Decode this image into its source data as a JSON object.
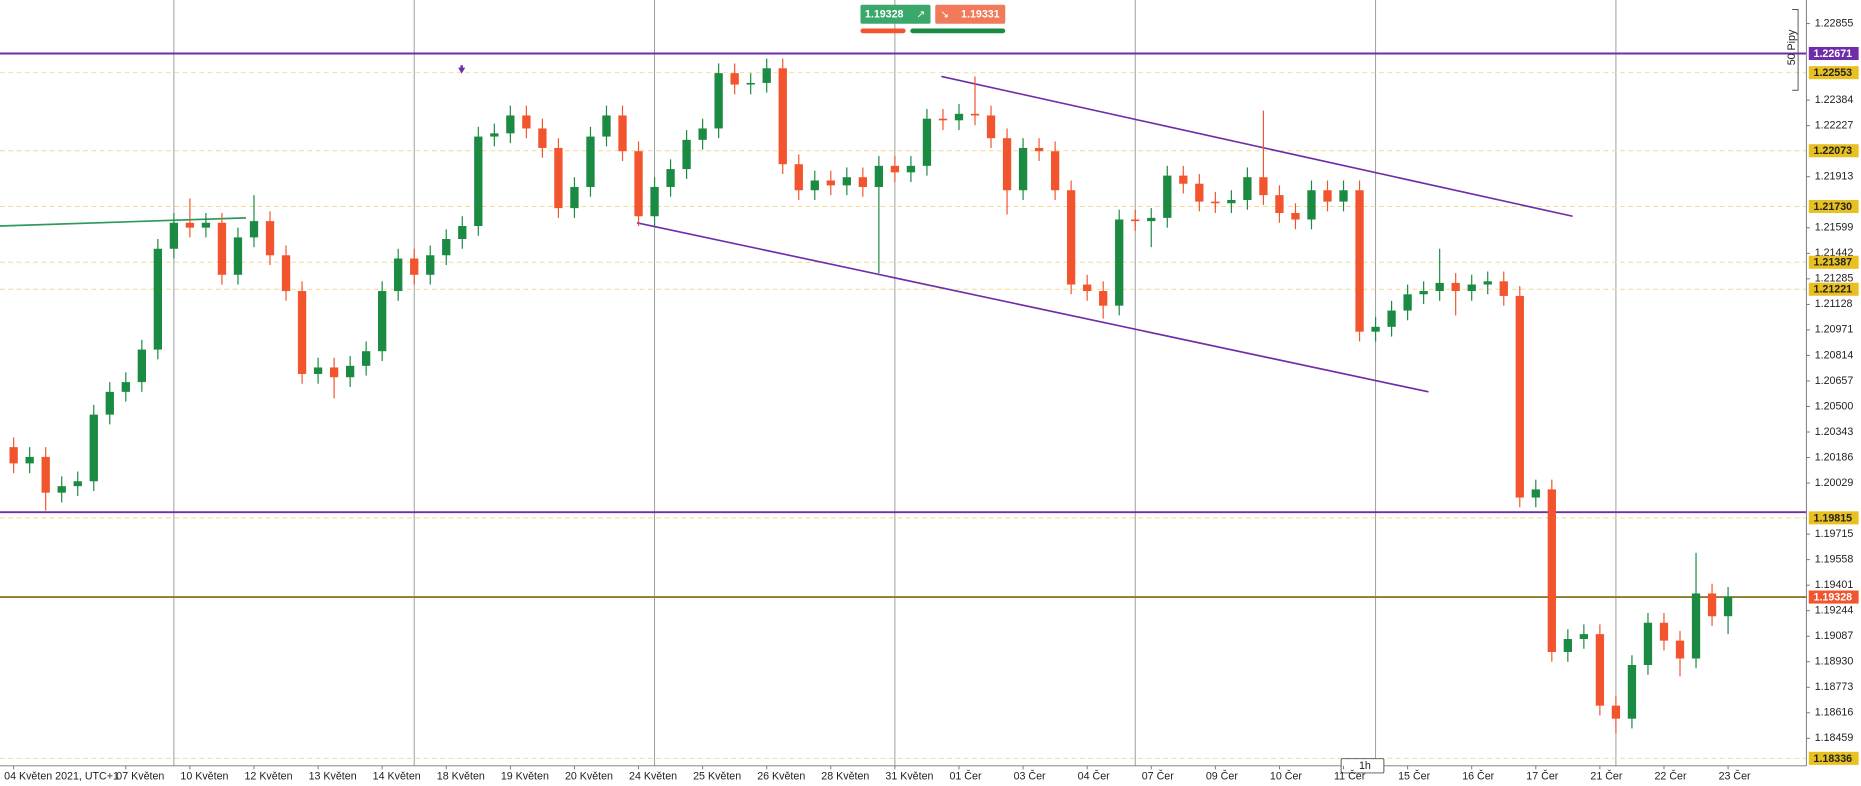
{
  "chart_data": {
    "type": "candlestick",
    "categories": [
      "04 Květen 2021, UTC+1",
      null,
      null,
      null,
      null,
      null,
      null,
      "07 Květen",
      null,
      null,
      null,
      "10 Květen",
      null,
      null,
      null,
      "12 Květen",
      null,
      null,
      null,
      "13 Květen",
      null,
      null,
      null,
      "14 Květen",
      null,
      null,
      null,
      "18 Květen",
      null,
      null,
      null,
      "19 Květen",
      null,
      null,
      null,
      "20 Květen",
      null,
      null,
      null,
      "24 Květen",
      null,
      null,
      null,
      "25 Květen",
      null,
      null,
      null,
      "26 Květen",
      null,
      null,
      null,
      "28 Květen",
      null,
      null,
      null,
      "31 Květen",
      null,
      null,
      null,
      "01 Čer",
      null,
      null,
      null,
      "03 Čer",
      null,
      null,
      null,
      "04 Čer",
      null,
      null,
      null,
      "07 Čer",
      null,
      null,
      null,
      "09 Čer",
      null,
      null,
      null,
      "10 Čer",
      null,
      null,
      null,
      "11 Čer",
      null,
      null,
      null,
      "15 Čer",
      null,
      null,
      null,
      "16 Čer",
      null,
      null,
      null,
      "17 Čer",
      null,
      null,
      null,
      "21 Čer",
      null,
      null,
      null,
      "22 Čer",
      null,
      null,
      null,
      "23 Čer"
    ],
    "open": [
      1.2025,
      1.2015,
      1.2019,
      1.1997,
      1.2001,
      1.2004,
      1.2045,
      1.2059,
      1.2065,
      1.2085,
      1.2147,
      1.2163,
      1.216,
      1.2163,
      1.2131,
      1.2154,
      1.2164,
      1.2143,
      1.2121,
      1.207,
      1.2074,
      1.2068,
      1.2075,
      1.2084,
      1.2121,
      1.2141,
      1.2131,
      1.2143,
      1.2153,
      1.2161,
      1.2216,
      1.2218,
      1.2229,
      1.2221,
      1.2209,
      1.2172,
      1.2185,
      1.2216,
      1.2229,
      1.2207,
      1.2167,
      1.2185,
      1.2196,
      1.2214,
      1.2221,
      1.2255,
      1.2248,
      1.2249,
      1.2258,
      1.2199,
      1.2183,
      1.2189,
      1.2186,
      1.2191,
      1.2185,
      1.2198,
      1.2194,
      1.2198,
      1.2227,
      1.2226,
      1.223,
      1.2229,
      1.2215,
      1.2183,
      1.2209,
      1.2207,
      1.2183,
      1.2125,
      1.2121,
      1.2112,
      1.2165,
      1.2164,
      1.2166,
      1.2192,
      1.2187,
      1.2176,
      1.2175,
      1.2177,
      1.2191,
      1.218,
      1.2169,
      1.2165,
      1.2183,
      1.2176,
      1.2183,
      1.2096,
      1.2099,
      1.2109,
      1.2119,
      1.2121,
      1.2126,
      1.2121,
      1.2125,
      1.2127,
      1.2118,
      1.1994,
      1.1999,
      1.1899,
      1.1907,
      1.191,
      1.1866,
      1.1858,
      1.1891,
      1.1917,
      1.1906,
      1.1895,
      1.1935,
      1.1921
    ],
    "high": [
      1.2031,
      1.2025,
      1.2025,
      1.2007,
      1.201,
      1.2051,
      1.2065,
      1.2071,
      1.2091,
      1.2153,
      1.2169,
      1.2178,
      1.2169,
      1.2169,
      1.216,
      1.218,
      1.217,
      1.2149,
      1.2127,
      1.208,
      1.208,
      1.2081,
      1.209,
      1.2127,
      1.2147,
      1.2147,
      1.2149,
      1.2159,
      1.2167,
      1.2222,
      1.2224,
      1.2235,
      1.2235,
      1.2227,
      1.2215,
      1.2191,
      1.2222,
      1.2235,
      1.2235,
      1.2213,
      1.2191,
      1.2202,
      1.222,
      1.2227,
      1.2261,
      1.2261,
      1.2255,
      1.2264,
      1.2264,
      1.2205,
      1.2195,
      1.2195,
      1.2197,
      1.2197,
      1.2204,
      1.2204,
      1.2204,
      1.2233,
      1.2233,
      1.2236,
      1.2253,
      1.2235,
      1.2221,
      1.2215,
      1.2215,
      1.2213,
      1.2189,
      1.2131,
      1.2127,
      1.2171,
      1.2171,
      1.2172,
      1.2198,
      1.2198,
      1.2193,
      1.2182,
      1.2183,
      1.2197,
      1.2232,
      1.2186,
      1.2175,
      1.2189,
      1.2189,
      1.2189,
      1.2189,
      1.2105,
      1.2115,
      1.2125,
      1.2127,
      1.2147,
      1.2132,
      1.2131,
      1.2133,
      1.2133,
      1.2124,
      1.2005,
      1.2005,
      1.1913,
      1.1916,
      1.1916,
      1.1872,
      1.1897,
      1.1923,
      1.1923,
      1.1912,
      1.196,
      1.1941,
      1.1939
    ],
    "low": [
      1.2009,
      1.2009,
      1.1986,
      1.1991,
      1.1995,
      1.1998,
      1.2039,
      1.2053,
      1.2059,
      1.2079,
      1.2141,
      1.2154,
      1.2154,
      1.2125,
      1.2125,
      1.2148,
      1.2137,
      1.2115,
      1.2064,
      1.2064,
      1.2055,
      1.2062,
      1.2069,
      1.2078,
      1.2115,
      1.2125,
      1.2125,
      1.2137,
      1.2147,
      1.2155,
      1.221,
      1.2212,
      1.2215,
      1.2203,
      1.2166,
      1.2166,
      1.2179,
      1.221,
      1.2201,
      1.2161,
      1.2161,
      1.2179,
      1.219,
      1.2208,
      1.2215,
      1.2242,
      1.2242,
      1.2243,
      1.2193,
      1.2177,
      1.2177,
      1.218,
      1.218,
      1.2179,
      1.2132,
      1.2188,
      1.2188,
      1.2192,
      1.222,
      1.222,
      1.2223,
      1.2209,
      1.2168,
      1.2177,
      1.2201,
      1.2177,
      1.2119,
      1.2115,
      1.2104,
      1.2106,
      1.2158,
      1.2148,
      1.216,
      1.2181,
      1.217,
      1.2169,
      1.2169,
      1.2171,
      1.2174,
      1.2163,
      1.2159,
      1.2159,
      1.217,
      1.217,
      1.209,
      1.209,
      1.2093,
      1.2103,
      1.2113,
      1.2115,
      1.2106,
      1.2115,
      1.2119,
      1.2112,
      1.1988,
      1.1988,
      1.1893,
      1.1893,
      1.1901,
      1.186,
      1.1849,
      1.1852,
      1.1885,
      1.19,
      1.1884,
      1.1889,
      1.1915,
      1.191
    ],
    "close": [
      1.2015,
      1.2019,
      1.1997,
      1.2001,
      1.2004,
      1.2045,
      1.2059,
      1.2065,
      1.2085,
      1.2147,
      1.2163,
      1.216,
      1.2163,
      1.2131,
      1.2154,
      1.2164,
      1.2143,
      1.2121,
      1.207,
      1.2074,
      1.2068,
      1.2075,
      1.2084,
      1.2121,
      1.2141,
      1.2131,
      1.2143,
      1.2153,
      1.2161,
      1.2216,
      1.2218,
      1.2229,
      1.2221,
      1.2209,
      1.2172,
      1.2185,
      1.2216,
      1.2229,
      1.2207,
      1.2167,
      1.2185,
      1.2196,
      1.2214,
      1.2221,
      1.2255,
      1.2248,
      1.2249,
      1.2258,
      1.2199,
      1.2183,
      1.2189,
      1.2186,
      1.2191,
      1.2185,
      1.2198,
      1.2194,
      1.2198,
      1.2227,
      1.2226,
      1.223,
      1.2229,
      1.2215,
      1.2183,
      1.2209,
      1.2207,
      1.2183,
      1.2125,
      1.2121,
      1.2112,
      1.2165,
      1.2164,
      1.2166,
      1.2192,
      1.2187,
      1.2176,
      1.2175,
      1.2177,
      1.2191,
      1.218,
      1.2169,
      1.2165,
      1.2183,
      1.2176,
      1.2183,
      1.2096,
      1.2099,
      1.2109,
      1.2119,
      1.2121,
      1.2126,
      1.2121,
      1.2125,
      1.2127,
      1.2118,
      1.1994,
      1.1999,
      1.1899,
      1.1907,
      1.191,
      1.1866,
      1.1858,
      1.1891,
      1.1917,
      1.1906,
      1.1895,
      1.1935,
      1.1921,
      1.1933
    ],
    "up_color": "#1b8a42",
    "down_color": "#f2542d",
    "ylim": [
      1.1829,
      1.23
    ],
    "yticks": [
      1.22855,
      1.22384,
      1.22227,
      1.21913,
      1.21599,
      1.21442,
      1.21285,
      1.21128,
      1.20971,
      1.20814,
      1.20657,
      {
        "value": 1.205,
        "label": "1.20500"
      },
      1.20343,
      1.20186,
      1.20029,
      1.19715,
      1.19558,
      1.19401,
      1.19244,
      1.19087,
      {
        "value": 1.1893,
        "label": "1.18930"
      },
      1.18773,
      1.18616,
      1.18459
    ],
    "levels": [
      {
        "value": 1.22671,
        "color": "#6f2da8",
        "line_color": "#6f2da8",
        "dashed": false,
        "text_color": "#ffffff"
      },
      {
        "value": 1.22553,
        "color": "#e8c020",
        "line_color": "#f0dc90",
        "dashed": true,
        "text_color": "#222222"
      },
      {
        "value": 1.22073,
        "color": "#e8c020",
        "line_color": "#f0dc90",
        "dashed": true,
        "text_color": "#222222"
      },
      {
        "value": 1.2173,
        "label": "1.21730",
        "color": "#e8c020",
        "line_color": "#f0dc90",
        "dashed": true,
        "text_color": "#222222"
      },
      {
        "value": 1.21387,
        "color": "#e8c020",
        "line_color": "#f0dc90",
        "dashed": true,
        "text_color": "#222222"
      },
      {
        "value": 1.21221,
        "color": "#e8c020",
        "line_color": "#f0dc90",
        "dashed": true,
        "text_color": "#222222"
      },
      {
        "value": 1.1985,
        "color": "#6f2da8",
        "line_color": "#6f2da8",
        "dashed": false,
        "badge": false
      },
      {
        "value": 1.19815,
        "color": "#e8c020",
        "line_color": "#f0dc90",
        "dashed": true,
        "text_color": "#222222"
      },
      {
        "value": 1.19328,
        "color": "#f2542d",
        "line_color": "#8c7a2e",
        "dashed": false,
        "text_color": "#ffffff"
      },
      {
        "value": 1.18336,
        "color": "#e8c020",
        "line_color": "#f0dc90",
        "dashed": true,
        "text_color": "#222222"
      }
    ],
    "trendlines": [
      {
        "color": "#6f2da8",
        "x": [
          57.9,
          97.3
        ],
        "y": [
          1.2253,
          1.2167
        ]
      },
      {
        "color": "#6f2da8",
        "x": [
          38.9,
          88.3
        ],
        "y": [
          1.2163,
          1.2059
        ]
      },
      {
        "color": "#2e9a5a",
        "x": [
          -0.85,
          14.5
        ],
        "y": [
          1.2161,
          1.2166
        ]
      }
    ]
  },
  "trade_panel": {
    "buy_price": 1.19328,
    "sell_price": 1.19331,
    "buy_color": "#3aa86a",
    "sell_color": "#f07a5a"
  },
  "timeframe": "1h",
  "ruler_label": "50 Pipy"
}
